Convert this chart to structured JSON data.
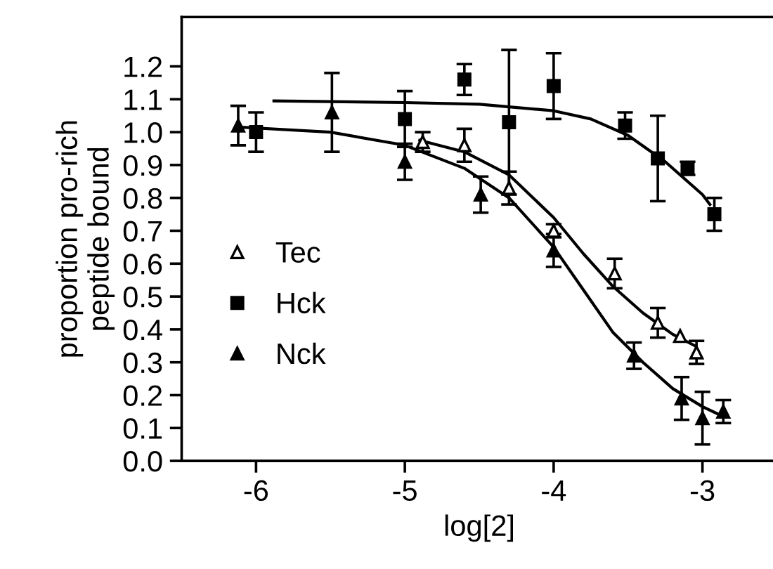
{
  "chart_data": {
    "type": "scatter",
    "xlabel": "log[2]",
    "ylabel": "proportion pro-rich\npeptide bound",
    "xlim": [
      -6.5,
      -2.5
    ],
    "ylim": [
      0,
      1.35
    ],
    "xticks": [
      -6,
      -5,
      -4,
      -3
    ],
    "yticks": [
      {
        "value": 0,
        "label": "0.0"
      },
      0.1,
      0.2,
      0.3,
      0.4,
      0.5,
      0.6,
      0.7,
      0.8,
      0.9,
      {
        "value": 1,
        "label": "1.0"
      },
      1.1,
      1.2
    ],
    "grid": false,
    "legend": "left",
    "series": [
      {
        "name": "Tec",
        "marker": "triangle",
        "color": "#ffffff",
        "x": [
          -4.88,
          -4.6,
          -4.3,
          -4.0,
          -3.59,
          -3.3,
          -3.15,
          -3.04
        ],
        "values": [
          0.97,
          0.96,
          0.83,
          0.7,
          0.57,
          0.42,
          0.38,
          0.33
        ],
        "errors": [
          0.03,
          0.05,
          0.05,
          0.02,
          0.045,
          0.045,
          null,
          0.035
        ]
      },
      {
        "name": "Hck",
        "marker": "square",
        "color": "#000000",
        "x": [
          -6.0,
          -5.0,
          -4.6,
          -4.3,
          -4.0,
          -3.52,
          -3.3,
          -3.1,
          -2.92
        ],
        "values": [
          1.0,
          1.04,
          1.16,
          1.03,
          1.14,
          1.02,
          0.92,
          0.89,
          0.75
        ],
        "errors": [
          0.06,
          0.085,
          0.047,
          0.22,
          0.1,
          0.04,
          0.13,
          0.02,
          0.05
        ]
      },
      {
        "name": "Nck",
        "marker": "triangle",
        "color": "#000000",
        "x": [
          -6.12,
          -5.49,
          -5.0,
          -4.49,
          -4.0,
          -3.46,
          -3.14,
          -3.0,
          -2.86
        ],
        "values": [
          1.02,
          1.06,
          0.91,
          0.81,
          0.64,
          0.32,
          0.19,
          0.13,
          0.15
        ],
        "errors": [
          0.06,
          0.12,
          0.055,
          0.055,
          0.05,
          0.04,
          0.065,
          0.08,
          0.035
        ]
      },
      {
        "type": "line",
        "color": "#000000",
        "x": [
          -5.88,
          -5.0,
          -4.5,
          -4.0,
          -3.75,
          -3.5,
          -3.25,
          -3.0,
          -2.95
        ],
        "values": [
          1.095,
          1.09,
          1.085,
          1.065,
          1.04,
          0.99,
          0.91,
          0.81,
          0.78
        ]
      },
      {
        "type": "line",
        "color": "#000000",
        "x": [
          -4.9,
          -4.6,
          -4.3,
          -4.0,
          -3.8,
          -3.6,
          -3.4,
          -3.2,
          -3.05
        ],
        "values": [
          0.975,
          0.94,
          0.87,
          0.74,
          0.63,
          0.53,
          0.45,
          0.385,
          0.35
        ]
      },
      {
        "type": "line",
        "color": "#000000",
        "x": [
          -6.1,
          -5.5,
          -5.0,
          -4.6,
          -4.3,
          -4.0,
          -3.8,
          -3.6,
          -3.4,
          -3.2,
          -3.0,
          -2.86
        ],
        "values": [
          1.015,
          1.0,
          0.96,
          0.89,
          0.8,
          0.65,
          0.52,
          0.39,
          0.3,
          0.22,
          0.165,
          0.135
        ]
      }
    ]
  }
}
